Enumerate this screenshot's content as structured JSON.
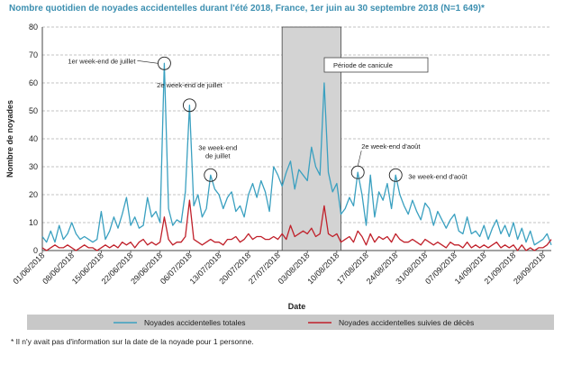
{
  "chart_data": {
    "type": "line",
    "title": "Nombre quotidien de noyades accidentelles durant l'été 2018, France, 1er juin au 30 septembre 2018 (N=1 649)*",
    "xlabel": "Date",
    "ylabel": "Nombre de noyades",
    "ylim": [
      0,
      80
    ],
    "yticks": [
      "0",
      "10",
      "20",
      "30",
      "40",
      "50",
      "60",
      "70",
      "80"
    ],
    "x_tick_labels": [
      "01/06/2018",
      "08/06/2018",
      "15/06/2018",
      "22/06/2018",
      "29/06/2018",
      "06/07/2018",
      "13/07/2018",
      "20/07/2018",
      "27/07/2018",
      "03/08/2018",
      "10/08/2018",
      "17/08/2018",
      "24/08/2018",
      "31/08/2018",
      "07/09/2018",
      "14/09/2018",
      "21/09/2018",
      "28/09/2018"
    ],
    "grid": true,
    "legend_position": "bottom",
    "series": [
      {
        "name": "Noyades accidentelles totales",
        "color": "#3aa0c0",
        "values": [
          5,
          3,
          7,
          3,
          9,
          4,
          6,
          10,
          6,
          4,
          5,
          4,
          3,
          4,
          14,
          4,
          7,
          12,
          8,
          13,
          19,
          9,
          12,
          8,
          9,
          19,
          12,
          14,
          10,
          67,
          15,
          9,
          11,
          10,
          21,
          52,
          16,
          20,
          12,
          15,
          27,
          22,
          20,
          15,
          19,
          21,
          14,
          16,
          12,
          20,
          24,
          19,
          25,
          21,
          14,
          30,
          27,
          23,
          28,
          32,
          22,
          29,
          27,
          25,
          37,
          30,
          27,
          60,
          28,
          21,
          24,
          13,
          15,
          19,
          16,
          28,
          20,
          9,
          27,
          12,
          21,
          18,
          24,
          15,
          27,
          20,
          16,
          13,
          18,
          14,
          11,
          17,
          15,
          9,
          14,
          11,
          8,
          11,
          13,
          7,
          6,
          12,
          6,
          7,
          5,
          9,
          4,
          8,
          11,
          6,
          9,
          5,
          10,
          4,
          8,
          3,
          7,
          2,
          3,
          4,
          6,
          2
        ],
        "annotation_indices": [
          29,
          35,
          40,
          75,
          84
        ]
      },
      {
        "name": "Noyades accidentelles suivies de décès",
        "color": "#c0202a",
        "values": [
          1,
          0,
          1,
          2,
          1,
          1,
          2,
          1,
          0,
          1,
          2,
          1,
          1,
          0,
          1,
          2,
          1,
          2,
          1,
          3,
          2,
          3,
          1,
          3,
          4,
          2,
          3,
          2,
          3,
          12,
          4,
          2,
          3,
          3,
          5,
          18,
          4,
          3,
          2,
          3,
          4,
          3,
          3,
          2,
          4,
          4,
          5,
          3,
          4,
          6,
          4,
          5,
          5,
          4,
          4,
          5,
          4,
          6,
          4,
          9,
          5,
          6,
          7,
          6,
          8,
          5,
          6,
          16,
          6,
          5,
          6,
          3,
          4,
          5,
          3,
          7,
          5,
          2,
          6,
          3,
          5,
          4,
          5,
          3,
          6,
          4,
          3,
          3,
          4,
          3,
          2,
          4,
          3,
          2,
          3,
          2,
          1,
          3,
          2,
          2,
          1,
          3,
          1,
          2,
          1,
          2,
          1,
          2,
          3,
          1,
          2,
          1,
          2,
          0,
          2,
          0,
          1,
          0,
          1,
          1,
          2,
          4
        ]
      }
    ],
    "shaded_period": {
      "start_index": 57,
      "end_index": 71,
      "label": "Période de canicule"
    },
    "annotations": [
      {
        "text": [
          "1er week-end de juillet"
        ],
        "index": 29
      },
      {
        "text": [
          "2e week-end de juillet"
        ],
        "index": 35
      },
      {
        "text": [
          "3e week-end",
          "de juillet"
        ],
        "index": 40
      },
      {
        "text": [
          "2e week-end d'août"
        ],
        "index": 75
      },
      {
        "text": [
          "3e week-end d'août"
        ],
        "index": 84
      }
    ],
    "footnote": "* Il n'y avait pas d'information sur la date de la noyade pour 1 personne."
  }
}
